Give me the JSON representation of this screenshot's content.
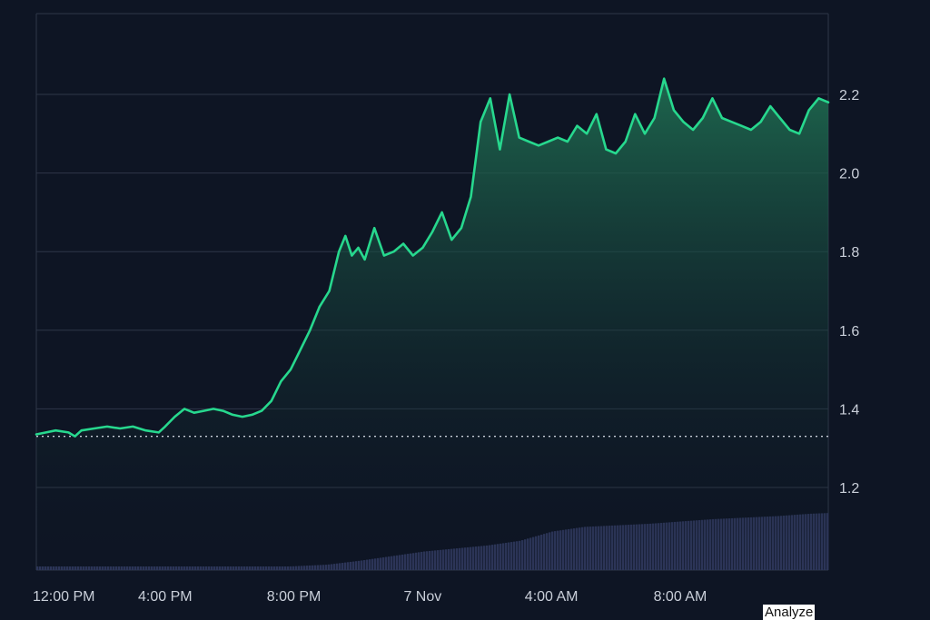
{
  "colors": {
    "background": "#0e1524",
    "grid": "#2e3748",
    "line": "#27d88e",
    "area_top": "#1f6f52",
    "area_bottom": "#0e1524",
    "volume": "#2c3558",
    "baseline": "#c9cfd9",
    "tick_text": "#c9cfd9"
  },
  "footer": {
    "analyze_label": "Analyze"
  },
  "chart_data": {
    "type": "area",
    "title": "",
    "xlabel": "",
    "ylabel": "",
    "x_ticks": [
      "12:00 PM",
      "4:00 PM",
      "8:00 PM",
      "7 Nov",
      "4:00 AM",
      "8:00 AM"
    ],
    "x_tick_hours": [
      0,
      4,
      8,
      12,
      16,
      20
    ],
    "x_range_hours": [
      0,
      24.6
    ],
    "y_ticks": [
      "1.2",
      "1.4",
      "1.6",
      "1.8",
      "2.0",
      "2.2"
    ],
    "y_tick_values": [
      1.2,
      1.4,
      1.6,
      1.8,
      2.0,
      2.2
    ],
    "ylim": [
      1.0,
      2.4
    ],
    "axis_position": "right",
    "grid": true,
    "baseline_value": 1.33,
    "series": [
      {
        "x_hours": [
          0.0,
          0.3,
          0.6,
          1.0,
          1.2,
          1.4,
          1.8,
          2.2,
          2.6,
          3.0,
          3.4,
          3.8,
          4.0,
          4.3,
          4.6,
          4.9,
          5.2,
          5.5,
          5.8,
          6.1,
          6.4,
          6.7,
          7.0,
          7.3,
          7.6,
          7.9,
          8.2,
          8.5,
          8.8,
          9.1,
          9.4,
          9.6,
          9.8,
          10.0,
          10.2,
          10.5,
          10.8,
          11.1,
          11.4,
          11.7,
          12.0,
          12.3,
          12.6,
          12.9,
          13.2,
          13.5,
          13.8,
          14.1,
          14.4,
          14.7,
          15.0,
          15.3,
          15.6,
          15.9,
          16.2,
          16.5,
          16.8,
          17.1,
          17.4,
          17.7,
          18.0,
          18.3,
          18.6,
          18.9,
          19.2,
          19.5,
          19.8,
          20.1,
          20.4,
          20.7,
          21.0,
          21.3,
          21.6,
          21.9,
          22.2,
          22.5,
          22.8,
          23.1,
          23.4,
          23.7,
          24.0,
          24.3,
          24.6
        ],
        "values": [
          1.335,
          1.34,
          1.345,
          1.34,
          1.33,
          1.345,
          1.35,
          1.355,
          1.35,
          1.355,
          1.345,
          1.34,
          1.355,
          1.38,
          1.4,
          1.39,
          1.395,
          1.4,
          1.395,
          1.385,
          1.38,
          1.385,
          1.395,
          1.42,
          1.47,
          1.5,
          1.55,
          1.6,
          1.66,
          1.7,
          1.8,
          1.84,
          1.79,
          1.81,
          1.78,
          1.86,
          1.79,
          1.8,
          1.82,
          1.79,
          1.81,
          1.85,
          1.9,
          1.83,
          1.86,
          1.94,
          2.13,
          2.19,
          2.06,
          2.2,
          2.09,
          2.08,
          2.07,
          2.08,
          2.09,
          2.08,
          2.12,
          2.1,
          2.15,
          2.06,
          2.05,
          2.08,
          2.15,
          2.1,
          2.14,
          2.24,
          2.16,
          2.13,
          2.11,
          2.14,
          2.19,
          2.14,
          2.13,
          2.12,
          2.11,
          2.13,
          2.17,
          2.14,
          2.11,
          2.1,
          2.16,
          2.19,
          2.18
        ]
      }
    ],
    "volume": {
      "x_hours": [
        0,
        2,
        4,
        6,
        7,
        8,
        9,
        10,
        11,
        12,
        13,
        14,
        15,
        16,
        17,
        18,
        19,
        20,
        21,
        22,
        23,
        24,
        24.6
      ],
      "values": [
        0.02,
        0.02,
        0.025,
        0.03,
        0.035,
        0.05,
        0.07,
        0.12,
        0.18,
        0.24,
        0.28,
        0.32,
        0.38,
        0.5,
        0.56,
        0.58,
        0.6,
        0.63,
        0.66,
        0.68,
        0.7,
        0.73,
        0.74
      ]
    }
  }
}
